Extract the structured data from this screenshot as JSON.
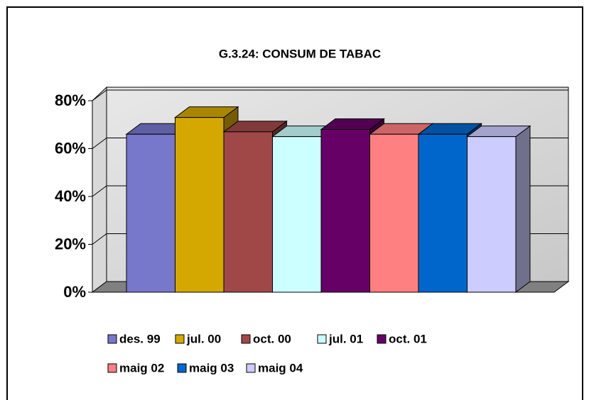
{
  "chart_data": {
    "type": "bar",
    "title": "G.3.24: CONSUM DE TABAC",
    "series": [
      {
        "name": "des. 99",
        "color": "#7777cc",
        "values": [
          66
        ]
      },
      {
        "name": "jul. 00",
        "color": "#d4a800",
        "values": [
          73
        ]
      },
      {
        "name": "oct. 00",
        "color": "#a04848",
        "values": [
          67
        ]
      },
      {
        "name": "jul. 01",
        "color": "#ccffff",
        "values": [
          65
        ]
      },
      {
        "name": "oct. 01",
        "color": "#660066",
        "values": [
          68
        ]
      },
      {
        "name": "maig 02",
        "color": "#ff8080",
        "values": [
          66
        ]
      },
      {
        "name": "maig 03",
        "color": "#0066cc",
        "values": [
          66
        ]
      },
      {
        "name": "maig 04",
        "color": "#ccccff",
        "values": [
          65
        ]
      }
    ],
    "ylim": [
      0,
      80
    ],
    "yticks": [
      {
        "value": 0,
        "label": "0%"
      },
      {
        "value": 20,
        "label": "20%"
      },
      {
        "value": 40,
        "label": "40%"
      },
      {
        "value": 60,
        "label": "60%"
      },
      {
        "value": 80,
        "label": "80%"
      }
    ],
    "grid": true
  }
}
